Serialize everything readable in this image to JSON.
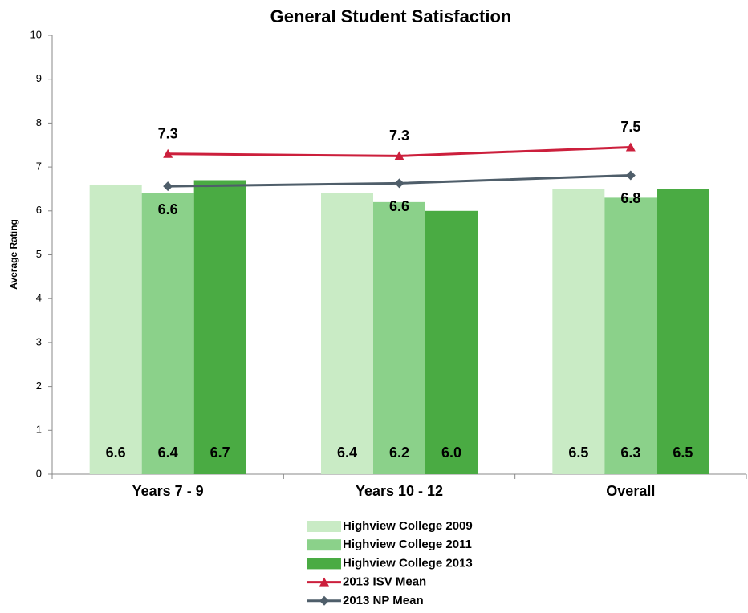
{
  "chart_data": {
    "type": "bar_line",
    "title": "General Student Satisfaction",
    "y_label": "Average Rating",
    "categories": [
      "Years 7 - 9",
      "Years 10 - 12",
      "Overall"
    ],
    "ylim": [
      0,
      10
    ],
    "yticks": [
      0,
      1,
      2,
      3,
      4,
      5,
      6,
      7,
      8,
      9,
      10
    ],
    "series": [
      {
        "name": "Highview College 2009",
        "kind": "bar",
        "color": "#c9ebc5",
        "values": [
          6.6,
          6.4,
          6.5
        ]
      },
      {
        "name": "Highview College 2011",
        "kind": "bar",
        "color": "#8bd18a",
        "values": [
          6.4,
          6.2,
          6.3
        ]
      },
      {
        "name": "Highview College 2013",
        "kind": "bar",
        "color": "#4aab43",
        "values": [
          6.7,
          6,
          6.5
        ],
        "value_labels": [
          "6.7",
          "6.0",
          "6.5"
        ]
      },
      {
        "name": "2013 ISV Mean",
        "kind": "line",
        "marker": "triangle",
        "color": "#cc1f3c",
        "values": [
          7.3,
          7.25,
          7.45
        ],
        "value_labels": [
          "7.3",
          "7.3",
          "7.5"
        ]
      },
      {
        "name": "2013 NP Mean",
        "kind": "line",
        "marker": "diamond",
        "color": "#4f5e6a",
        "values": [
          6.56,
          6.63,
          6.81
        ],
        "value_labels": [
          "6.6",
          "6.6",
          "6.8"
        ]
      }
    ]
  }
}
